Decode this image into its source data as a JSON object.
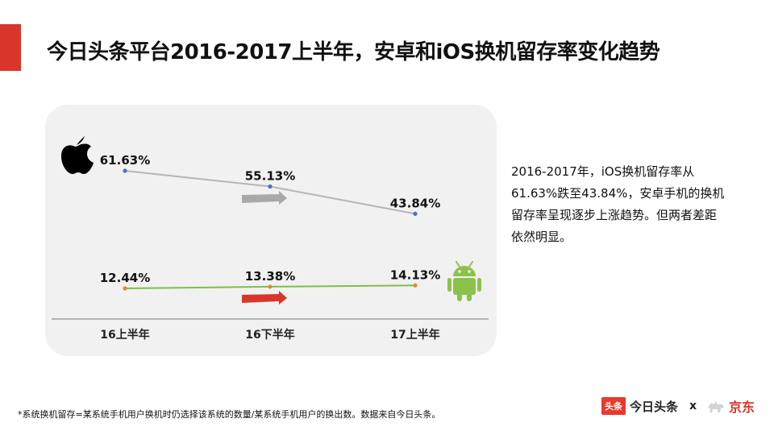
{
  "title": "今日头条平台2016-2017上半年，安卓和iOS换机留存率变化趋势",
  "description_lines": [
    "2016-2017年，iOS换机留存率从",
    "61.63%跌至43.84%，安卓手机的换机",
    "留存率呈现逐步上涨趋势。但两者差距",
    "依然明显。"
  ],
  "footnote": "*系统换机留存=某系统手机用户换机时仍选择该系统的数量/某系统手机用户的换出数。数据来自今日头条。",
  "brand": {
    "toutiao_badge": "头条",
    "toutiao_name": "今日头条",
    "separator": "x",
    "jd_name": "京东"
  },
  "colors": {
    "accent": "#d9362b",
    "ios_line": "#b5b5b5",
    "android_line": "#7cc04a",
    "android_icon": "#8bc34a",
    "arrow_up": "#a9a9a9",
    "arrow_down": "#d9362b"
  },
  "chart_data": {
    "type": "line",
    "categories": [
      "16上半年",
      "16下半年",
      "17上半年"
    ],
    "series": [
      {
        "icon": "apple-icon",
        "values": [
          61.63,
          55.13,
          43.84
        ],
        "labels": [
          "61.63%",
          "55.13%",
          "43.84%"
        ]
      },
      {
        "icon": "android-icon",
        "values": [
          12.44,
          13.38,
          14.13
        ],
        "labels": [
          "12.44%",
          "13.38%",
          "14.13%"
        ]
      }
    ],
    "trend_arrows": [
      "down",
      "up"
    ],
    "grid": false
  }
}
